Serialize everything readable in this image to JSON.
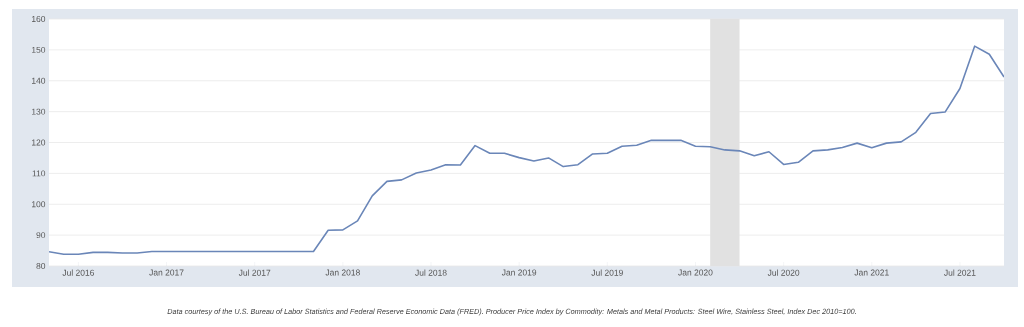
{
  "chart_data": {
    "type": "line",
    "x": [
      "2016-05",
      "2016-06",
      "2016-07",
      "2016-08",
      "2016-09",
      "2016-10",
      "2016-11",
      "2016-12",
      "2017-01",
      "2017-02",
      "2017-03",
      "2017-04",
      "2017-05",
      "2017-06",
      "2017-07",
      "2017-08",
      "2017-09",
      "2017-10",
      "2017-11",
      "2017-12",
      "2018-01",
      "2018-02",
      "2018-03",
      "2018-04",
      "2018-05",
      "2018-06",
      "2018-07",
      "2018-08",
      "2018-09",
      "2018-10",
      "2018-11",
      "2018-12",
      "2019-01",
      "2019-02",
      "2019-03",
      "2019-04",
      "2019-05",
      "2019-06",
      "2019-07",
      "2019-08",
      "2019-09",
      "2019-10",
      "2019-11",
      "2019-12",
      "2020-01",
      "2020-02",
      "2020-03",
      "2020-04",
      "2020-05",
      "2020-06",
      "2020-07",
      "2020-08",
      "2020-09",
      "2020-10",
      "2020-11",
      "2020-12",
      "2021-01",
      "2021-02",
      "2021-03",
      "2021-04",
      "2021-05",
      "2021-06",
      "2021-07",
      "2021-08",
      "2021-09",
      "2021-10"
    ],
    "series": [
      {
        "color": "#6a86b8",
        "values": [
          84.6,
          83.8,
          83.8,
          84.4,
          84.4,
          84.2,
          84.2,
          84.7,
          84.7,
          84.7,
          84.7,
          84.7,
          84.7,
          84.7,
          84.7,
          84.7,
          84.7,
          84.7,
          84.7,
          91.6,
          91.7,
          94.6,
          102.7,
          107.4,
          107.9,
          110.1,
          111.1,
          112.8,
          112.7,
          119.0,
          116.5,
          116.5,
          115.1,
          114.0,
          115.0,
          112.2,
          112.8,
          116.3,
          116.5,
          118.8,
          119.1,
          120.7,
          120.7,
          120.7,
          118.8,
          118.6,
          117.6,
          117.3,
          115.7,
          117.0,
          112.9,
          113.6,
          117.3,
          117.6,
          118.4,
          119.8,
          118.3,
          119.8,
          120.2,
          123.3,
          129.4,
          129.9,
          137.5,
          151.2,
          148.6,
          141.2
        ]
      }
    ],
    "xlim": [
      "2016-05",
      "2021-10"
    ],
    "xticks": [
      {
        "value": "2016-07",
        "label": "Jul 2016"
      },
      {
        "value": "2017-01",
        "label": "Jan 2017"
      },
      {
        "value": "2017-07",
        "label": "Jul 2017"
      },
      {
        "value": "2018-01",
        "label": "Jan 2018"
      },
      {
        "value": "2018-07",
        "label": "Jul 2018"
      },
      {
        "value": "2019-01",
        "label": "Jan 2019"
      },
      {
        "value": "2019-07",
        "label": "Jul 2019"
      },
      {
        "value": "2020-01",
        "label": "Jan 2020"
      },
      {
        "value": "2020-07",
        "label": "Jul 2020"
      },
      {
        "value": "2021-01",
        "label": "Jan 2021"
      },
      {
        "value": "2021-07",
        "label": "Jul 2021"
      }
    ],
    "ylim": [
      80,
      160
    ],
    "yticks": [
      80,
      90,
      100,
      110,
      120,
      130,
      140,
      150,
      160
    ],
    "grid": "y",
    "bands": [
      {
        "axis": "x",
        "from": "2020-02",
        "to": "2020-04",
        "color": "#e1e1e1"
      }
    ],
    "annotations": [
      "Data courtesy of the U.S. Bureau of Labor Statistics and Federal Reserve Economic Data (FRED). Producer Price Index by Commodity: Metals and Metal Products: Steel Wire, Stainless Steel, Index Dec 2010=100."
    ]
  }
}
